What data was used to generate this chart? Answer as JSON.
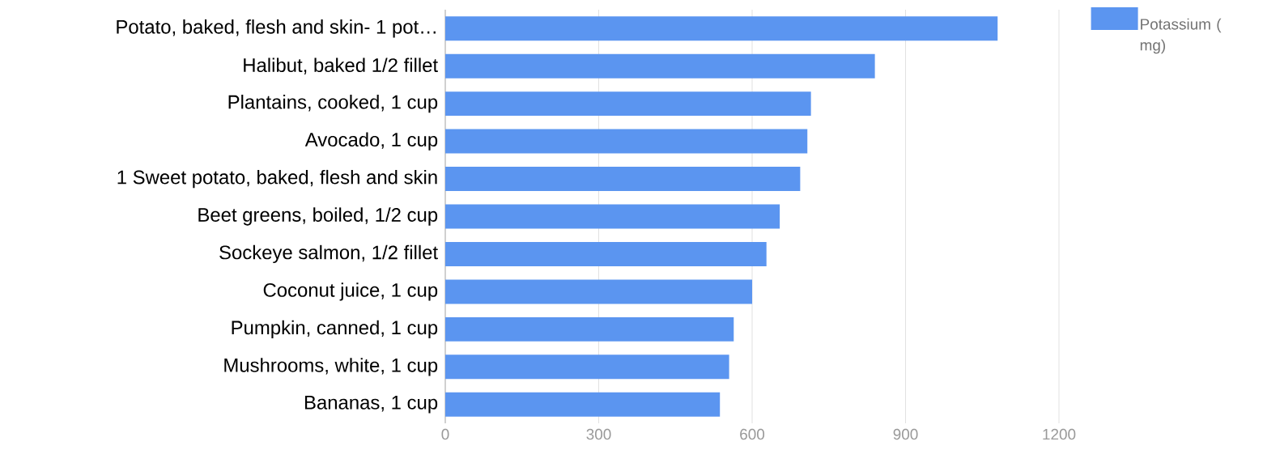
{
  "chart_data": {
    "type": "bar",
    "orientation": "horizontal",
    "categories": [
      "Potato, baked, flesh and skin- 1 pot…",
      "Halibut, baked 1/2 fillet",
      "Plantains, cooked, 1 cup",
      "Avocado, 1 cup",
      "1 Sweet potato, baked, flesh and skin",
      "Beet greens, boiled, 1/2 cup",
      "Sockeye salmon, 1/2 fillet",
      "Coconut juice, 1 cup",
      "Pumpkin, canned, 1 cup",
      "Mushrooms, white, 1 cup",
      "Bananas, 1 cup"
    ],
    "series": [
      {
        "name": "Potassium ( mg)",
        "color": "#5b95f0",
        "values": [
          1080,
          840,
          715,
          708,
          694,
          654,
          628,
          600,
          564,
          555,
          537
        ]
      }
    ],
    "xlim": [
      0,
      1200
    ],
    "xticks": [
      0,
      300,
      600,
      900,
      1200
    ],
    "grid": "x",
    "legend": "top right"
  }
}
